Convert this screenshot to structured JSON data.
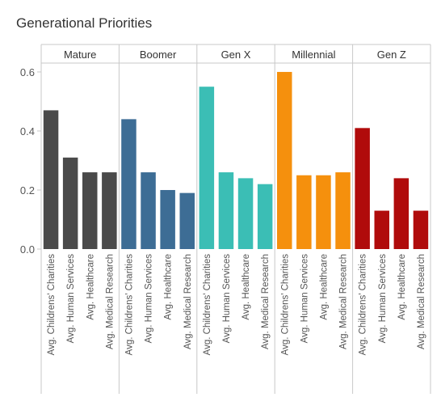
{
  "chart_data": {
    "type": "bar",
    "title": "Generational Priorities",
    "ylim": [
      0,
      0.63
    ],
    "yticks": [
      0.0,
      0.2,
      0.4,
      0.6
    ],
    "ytick_labels": [
      "0.0",
      "0.2",
      "0.4",
      "0.6"
    ],
    "grid": false,
    "categories": [
      "Avg. Childrens' Charities",
      "Avg. Human Services",
      "Avg. Healthcare",
      "Avg. Medical Research"
    ],
    "panels": [
      {
        "name": "Mature",
        "color": "#4a4a4a",
        "values": [
          0.47,
          0.31,
          0.26,
          0.26
        ]
      },
      {
        "name": "Boomer",
        "color": "#3d6d95",
        "values": [
          0.44,
          0.26,
          0.2,
          0.19
        ]
      },
      {
        "name": "Gen X",
        "color": "#3bbeb5",
        "values": [
          0.55,
          0.26,
          0.24,
          0.22
        ]
      },
      {
        "name": "Millennial",
        "color": "#f5900d",
        "values": [
          0.6,
          0.25,
          0.25,
          0.26
        ]
      },
      {
        "name": "Gen Z",
        "color": "#b00b0b",
        "values": [
          0.41,
          0.13,
          0.24,
          0.13
        ]
      }
    ]
  }
}
